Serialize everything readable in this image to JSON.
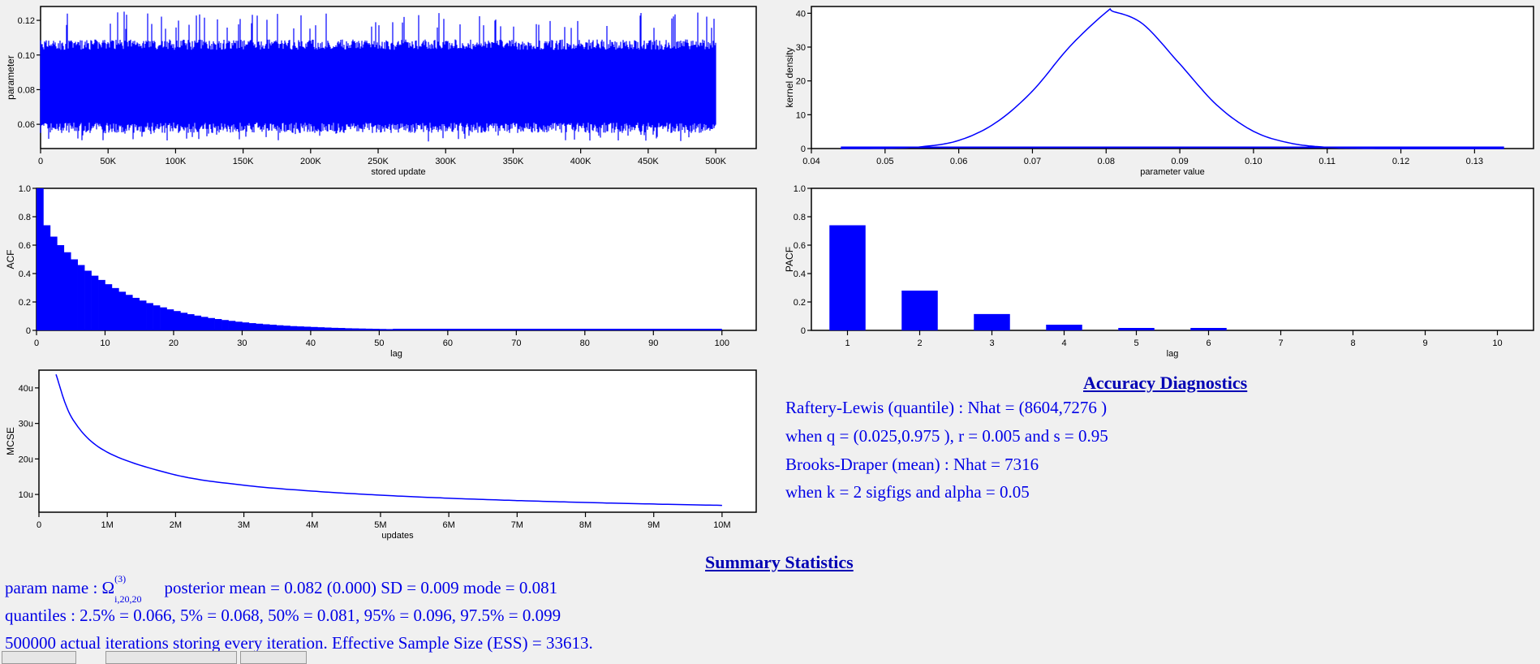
{
  "charts": {
    "trace": {
      "ylabel": "parameter",
      "xlabel": "stored update",
      "yticks": [
        {
          "v": 0.06,
          "l": "0.06"
        },
        {
          "v": 0.08,
          "l": "0.08"
        },
        {
          "v": 0.1,
          "l": "0.10"
        },
        {
          "v": 0.12,
          "l": "0.12"
        }
      ],
      "xticks": [
        {
          "v": 0,
          "l": "0"
        },
        {
          "v": 50000,
          "l": "50K"
        },
        {
          "v": 100000,
          "l": "100K"
        },
        {
          "v": 150000,
          "l": "150K"
        },
        {
          "v": 200000,
          "l": "200K"
        },
        {
          "v": 250000,
          "l": "250K"
        },
        {
          "v": 300000,
          "l": "300K"
        },
        {
          "v": 350000,
          "l": "350K"
        },
        {
          "v": 400000,
          "l": "400K"
        },
        {
          "v": 450000,
          "l": "450K"
        },
        {
          "v": 500000,
          "l": "500K"
        }
      ]
    },
    "density": {
      "ylabel": "kernel density",
      "xlabel": "parameter value",
      "yticks": [
        {
          "v": 0,
          "l": "0"
        },
        {
          "v": 10,
          "l": "10"
        },
        {
          "v": 20,
          "l": "20"
        },
        {
          "v": 30,
          "l": "30"
        },
        {
          "v": 40,
          "l": "40"
        }
      ],
      "xticks": [
        {
          "v": 0.04,
          "l": "0.04"
        },
        {
          "v": 0.05,
          "l": "0.05"
        },
        {
          "v": 0.06,
          "l": "0.06"
        },
        {
          "v": 0.07,
          "l": "0.07"
        },
        {
          "v": 0.08,
          "l": "0.08"
        },
        {
          "v": 0.09,
          "l": "0.09"
        },
        {
          "v": 0.1,
          "l": "0.10"
        },
        {
          "v": 0.11,
          "l": "0.11"
        },
        {
          "v": 0.12,
          "l": "0.12"
        },
        {
          "v": 0.13,
          "l": "0.13"
        }
      ]
    },
    "acf": {
      "ylabel": "ACF",
      "xlabel": "lag",
      "yticks": [
        {
          "v": 0,
          "l": "0"
        },
        {
          "v": 0.2,
          "l": "0.2"
        },
        {
          "v": 0.4,
          "l": "0.4"
        },
        {
          "v": 0.6,
          "l": "0.6"
        },
        {
          "v": 0.8,
          "l": "0.8"
        },
        {
          "v": 1.0,
          "l": "1.0"
        }
      ],
      "xticks": [
        {
          "v": 0,
          "l": "0"
        },
        {
          "v": 10,
          "l": "10"
        },
        {
          "v": 20,
          "l": "20"
        },
        {
          "v": 30,
          "l": "30"
        },
        {
          "v": 40,
          "l": "40"
        },
        {
          "v": 50,
          "l": "50"
        },
        {
          "v": 60,
          "l": "60"
        },
        {
          "v": 70,
          "l": "70"
        },
        {
          "v": 80,
          "l": "80"
        },
        {
          "v": 90,
          "l": "90"
        },
        {
          "v": 100,
          "l": "100"
        }
      ]
    },
    "pacf": {
      "ylabel": "PACF",
      "xlabel": "lag",
      "yticks": [
        {
          "v": 0,
          "l": "0"
        },
        {
          "v": 0.2,
          "l": "0.2"
        },
        {
          "v": 0.4,
          "l": "0.4"
        },
        {
          "v": 0.6,
          "l": "0.6"
        },
        {
          "v": 0.8,
          "l": "0.8"
        },
        {
          "v": 1.0,
          "l": "1.0"
        }
      ],
      "xticks": [
        {
          "v": 1,
          "l": "1"
        },
        {
          "v": 2,
          "l": "2"
        },
        {
          "v": 3,
          "l": "3"
        },
        {
          "v": 4,
          "l": "4"
        },
        {
          "v": 5,
          "l": "5"
        },
        {
          "v": 6,
          "l": "6"
        },
        {
          "v": 7,
          "l": "7"
        },
        {
          "v": 8,
          "l": "8"
        },
        {
          "v": 9,
          "l": "9"
        },
        {
          "v": 10,
          "l": "10"
        }
      ]
    },
    "mcse": {
      "ylabel": "MCSE",
      "xlabel": "updates",
      "yticks": [
        {
          "v": 10,
          "l": "10u"
        },
        {
          "v": 20,
          "l": "20u"
        },
        {
          "v": 30,
          "l": "30u"
        },
        {
          "v": 40,
          "l": "40u"
        }
      ],
      "xticks": [
        {
          "v": 0,
          "l": "0"
        },
        {
          "v": 1000000,
          "l": "1M"
        },
        {
          "v": 2000000,
          "l": "2M"
        },
        {
          "v": 3000000,
          "l": "3M"
        },
        {
          "v": 4000000,
          "l": "4M"
        },
        {
          "v": 5000000,
          "l": "5M"
        },
        {
          "v": 6000000,
          "l": "6M"
        },
        {
          "v": 7000000,
          "l": "7M"
        },
        {
          "v": 8000000,
          "l": "8M"
        },
        {
          "v": 9000000,
          "l": "9M"
        },
        {
          "v": 10000000,
          "l": "10M"
        }
      ]
    }
  },
  "chart_data": [
    {
      "type": "line",
      "ylabel": "parameter",
      "xlabel": "stored update",
      "xlim": [
        0,
        530000
      ],
      "ylim": [
        0.046,
        0.128
      ],
      "x": [
        0,
        500000
      ],
      "y_mean": 0.082,
      "y_band": [
        0.058,
        0.106
      ],
      "y_extremes": [
        0.05,
        0.125
      ],
      "color": "#0000ff"
    },
    {
      "type": "line",
      "ylabel": "kernel density",
      "xlabel": "parameter value",
      "xlim": [
        0.04,
        0.138
      ],
      "ylim": [
        0,
        42
      ],
      "x": [
        0.044,
        0.05,
        0.055,
        0.06,
        0.065,
        0.07,
        0.075,
        0.08,
        0.081,
        0.085,
        0.09,
        0.095,
        0.1,
        0.105,
        0.11,
        0.115,
        0.12,
        0.125,
        0.134
      ],
      "y": [
        0.01,
        0.09,
        0.55,
        2.4,
        7.6,
        17.0,
        30.0,
        40.3,
        40.5,
        36.8,
        25.0,
        12.9,
        5.1,
        1.6,
        0.38,
        0.07,
        0.01,
        0.0,
        0.0
      ],
      "color": "#0000ff"
    },
    {
      "type": "bar",
      "ylabel": "ACF",
      "xlabel": "lag",
      "xlim": [
        0,
        105
      ],
      "ylim": [
        0,
        1.0
      ],
      "x": [
        0,
        1,
        2,
        3,
        4,
        5,
        6,
        7,
        8,
        9,
        10,
        11,
        12,
        13,
        14,
        15,
        16,
        17,
        18,
        19,
        20,
        21,
        22,
        23,
        24,
        25,
        26,
        27,
        28,
        29,
        30,
        31,
        32,
        33,
        34,
        35,
        36,
        37,
        38,
        39,
        40,
        41,
        42,
        43,
        44,
        45,
        46,
        47,
        48,
        49,
        50,
        51,
        52
      ],
      "values": [
        1.0,
        0.74,
        0.66,
        0.6,
        0.55,
        0.5,
        0.46,
        0.42,
        0.385,
        0.355,
        0.325,
        0.298,
        0.272,
        0.25,
        0.229,
        0.21,
        0.192,
        0.176,
        0.162,
        0.148,
        0.136,
        0.124,
        0.114,
        0.104,
        0.095,
        0.087,
        0.08,
        0.073,
        0.067,
        0.061,
        0.056,
        0.051,
        0.047,
        0.043,
        0.04,
        0.036,
        0.033,
        0.03,
        0.028,
        0.026,
        0.024,
        0.022,
        0.02,
        0.018,
        0.017,
        0.015,
        0.014,
        0.013,
        0.012,
        0.011,
        0.01,
        0.009,
        0.008
      ],
      "color": "#0000ff"
    },
    {
      "type": "bar",
      "ylabel": "PACF",
      "xlabel": "lag",
      "xlim": [
        0.5,
        10.5
      ],
      "ylim": [
        0,
        1.0
      ],
      "categories": [
        "1",
        "2",
        "3",
        "4",
        "5",
        "6"
      ],
      "values": [
        0.74,
        0.28,
        0.115,
        0.04,
        0.012,
        0.006
      ],
      "color": "#0000ff"
    },
    {
      "type": "line",
      "ylabel": "MCSE",
      "xlabel": "updates",
      "xlim": [
        0,
        10500000
      ],
      "ylim": [
        5,
        45
      ],
      "y_unit": "u",
      "x": [
        250000,
        500000,
        1000000,
        2000000,
        3000000,
        4000000,
        5000000,
        6000000,
        7000000,
        8000000,
        9000000,
        10000000
      ],
      "y": [
        43.8,
        31.0,
        21.9,
        15.5,
        12.6,
        10.95,
        9.8,
        8.94,
        8.28,
        7.74,
        7.3,
        6.93
      ],
      "color": "#0000ff"
    }
  ],
  "diagnostics": {
    "title": "Accuracy Diagnostics",
    "lines": [
      "Raftery-Lewis (quantile) : Nhat = (8604,7276 )",
      "when q = (0.025,0.975 ), r = 0.005 and s = 0.95",
      "Brooks-Draper (mean)   : Nhat = 7316",
      "when k = 2 sigfigs and alpha = 0.05"
    ]
  },
  "summary": {
    "title": "Summary Statistics",
    "param_prefix": "param name : Ω",
    "param_sup": "(3)",
    "param_sub": "i,20,20",
    "param_rest": "posterior mean = 0.082 (0.000)  SD  = 0.009  mode  = 0.081",
    "quantiles": "quantiles : 2.5% = 0.066,   5% = 0.068,   50% = 0.081,   95% = 0.096,   97.5% = 0.099",
    "iterations": "500000 actual iterations storing every iteration. Effective Sample Size (ESS) = 33613."
  }
}
